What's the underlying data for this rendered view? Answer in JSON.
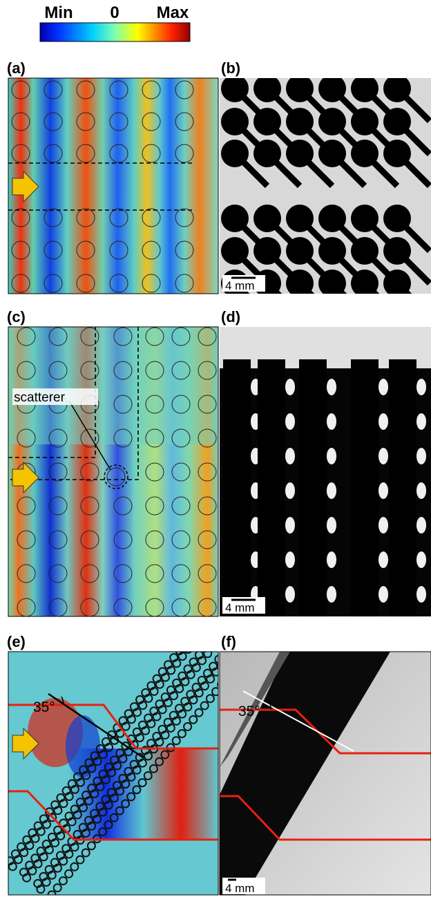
{
  "colorbar": {
    "min": "Min",
    "zero": "0",
    "max": "Max"
  },
  "panels": [
    {
      "label": "(a)"
    },
    {
      "label": "(b)",
      "scale_bar": "4 mm"
    },
    {
      "label": "(c)",
      "annotation": "scatterer"
    },
    {
      "label": "(d)",
      "scale_bar": "4 mm"
    },
    {
      "label": "(e)",
      "angle": "35°"
    },
    {
      "label": "(f)",
      "angle": "35°",
      "scale_bar": "4 mm"
    }
  ]
}
